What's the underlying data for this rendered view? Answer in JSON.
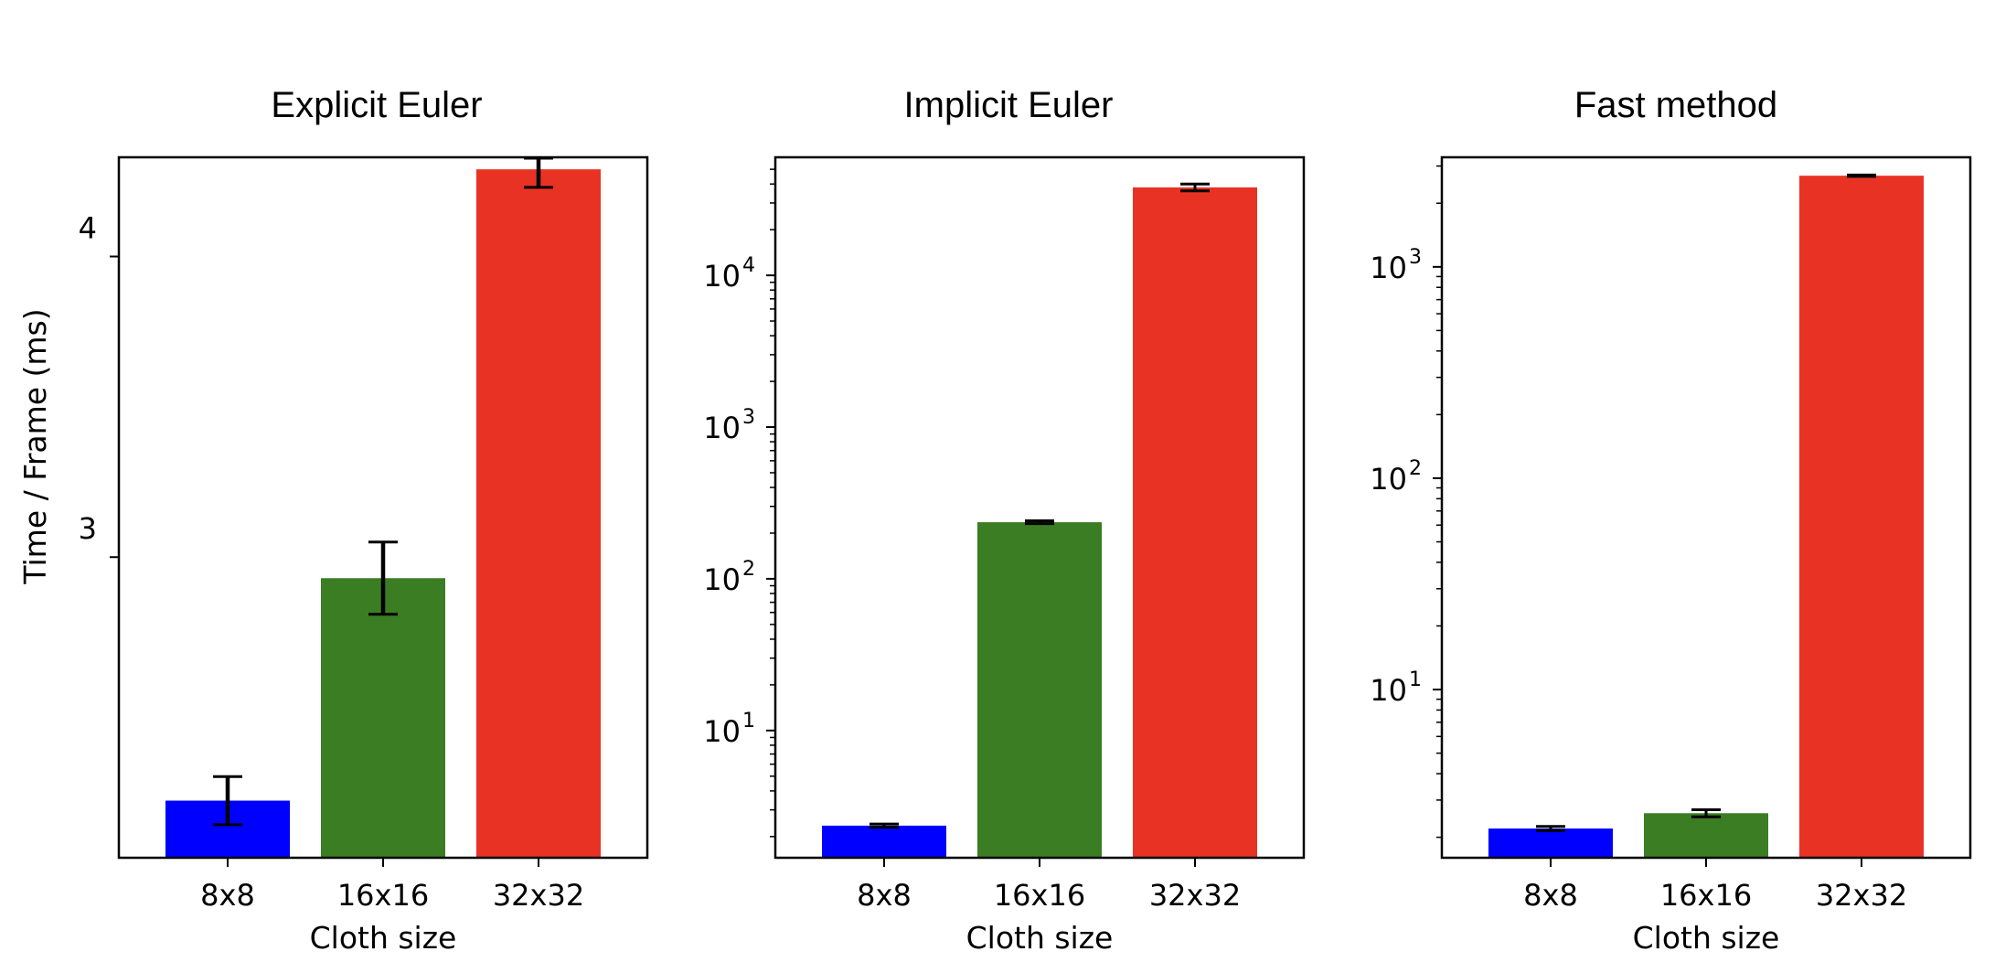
{
  "figure": {
    "ylabel": "Time / Frame (ms)"
  },
  "chart_data": [
    {
      "type": "bar",
      "title": "Explicit Euler",
      "xlabel": "Cloth size",
      "ylabel": "Time / Frame (ms)",
      "categories": [
        "8x8",
        "16x16",
        "32x32"
      ],
      "values": [
        2.19,
        2.93,
        4.29
      ],
      "errors": [
        0.08,
        0.12,
        0.06
      ],
      "colors": [
        "#0000ff",
        "#3a7d23",
        "#e83324"
      ],
      "yscale": "linear",
      "ylim": [
        2.0,
        4.33
      ],
      "yticks": [
        3,
        4
      ],
      "ytick_labels": [
        "3",
        "4"
      ],
      "grid": false
    },
    {
      "type": "bar",
      "title": "Implicit Euler",
      "xlabel": "Cloth size",
      "ylabel": "",
      "categories": [
        "8x8",
        "16x16",
        "32x32"
      ],
      "values": [
        2.36,
        236,
        38000
      ],
      "errors": [
        0.06,
        5,
        2000
      ],
      "colors": [
        "#0000ff",
        "#3a7d23",
        "#e83324"
      ],
      "yscale": "log",
      "ylim": [
        1.45,
        60000
      ],
      "yticks": [
        10,
        100,
        1000,
        10000
      ],
      "ytick_labels": [
        {
          "base": "10",
          "exp": "1"
        },
        {
          "base": "10",
          "exp": "2"
        },
        {
          "base": "10",
          "exp": "3"
        },
        {
          "base": "10",
          "exp": "4"
        }
      ],
      "grid": false
    },
    {
      "type": "bar",
      "title": "Fast method",
      "xlabel": "Cloth size",
      "ylabel": "",
      "categories": [
        "8x8",
        "16x16",
        "32x32"
      ],
      "values": [
        2.2,
        2.6,
        2700
      ],
      "errors": [
        0.05,
        0.1,
        20
      ],
      "colors": [
        "#0000ff",
        "#3a7d23",
        "#e83324"
      ],
      "yscale": "log",
      "ylim": [
        1.6,
        3300
      ],
      "yticks": [
        10,
        100,
        1000
      ],
      "ytick_labels": [
        {
          "base": "10",
          "exp": "1"
        },
        {
          "base": "10",
          "exp": "2"
        },
        {
          "base": "10",
          "exp": "3"
        }
      ],
      "grid": false
    }
  ]
}
